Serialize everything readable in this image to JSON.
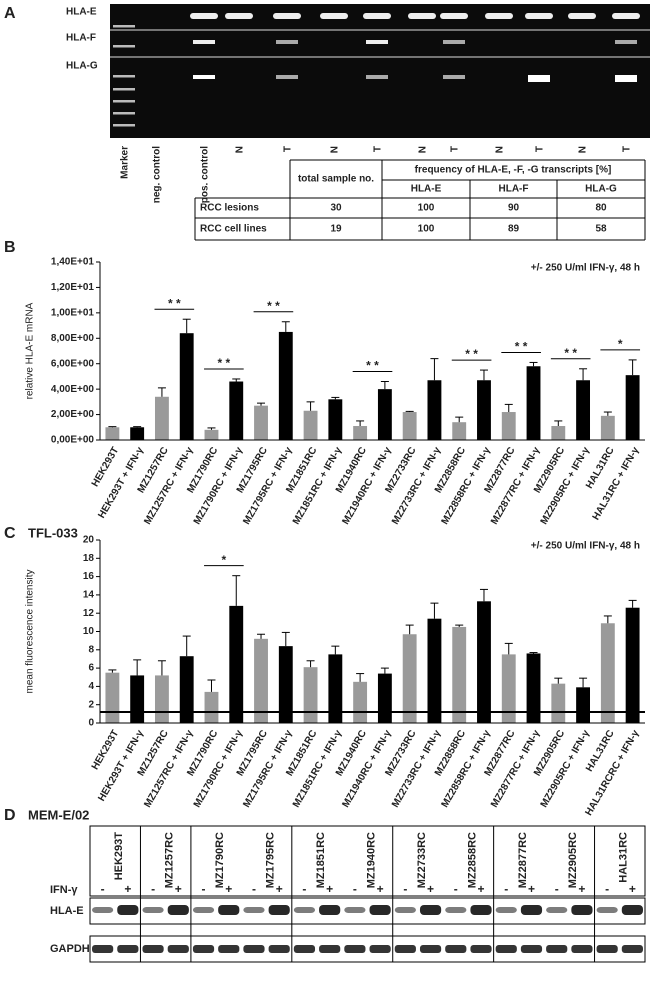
{
  "panel_a": {
    "label": "A",
    "gel_rows": [
      "HLA-E",
      "HLA-F",
      "HLA-G"
    ],
    "lanes": [
      "Marker",
      "neg. control",
      "pos. control",
      "N",
      "T",
      "N",
      "T",
      "N",
      "T",
      "N",
      "T",
      "N",
      "T"
    ],
    "table": {
      "header": [
        "total sample no.",
        "frequency of HLA-E, -F, -G transcripts [%]"
      ],
      "subheader": [
        "HLA-E",
        "HLA-F",
        "HLA-G"
      ],
      "rows": [
        [
          "RCC lesions",
          "30",
          "100",
          "90",
          "80"
        ],
        [
          "RCC cell lines",
          "19",
          "100",
          "89",
          "58"
        ]
      ]
    }
  },
  "chart_data": [
    {
      "type": "bar",
      "panel": "B",
      "annotation": "+/- 250 U/ml IFN-γ, 48 h",
      "y_label": "relative HLA-E mRNA",
      "categories": [
        "HEK293T",
        "HEK293T + IFN-γ",
        "MZ1257RC",
        "MZ1257RC + IFN-γ",
        "MZ1790RC",
        "MZ1790RC + IFN-γ",
        "MZ1795RC",
        "MZ1795RC + IFN-γ",
        "MZ1851RC",
        "MZ1851RC + IFN-γ",
        "MZ1940RC",
        "MZ1940RC + IFN-γ",
        "MZ2733RC",
        "MZ2733RC + IFN-γ",
        "MZ2858RC",
        "MZ2858RC + IFN-γ",
        "MZ2877RC",
        "MZ2877RC + IFN-γ",
        "MZ2905RC",
        "MZ2905RC + IFN-γ",
        "HAL31RC",
        "HAL31RC + IFN-γ"
      ],
      "values": [
        1.0,
        1.0,
        3.4,
        8.4,
        0.8,
        4.6,
        2.7,
        8.5,
        2.3,
        3.2,
        1.1,
        4.0,
        2.2,
        4.7,
        1.4,
        4.7,
        2.2,
        5.8,
        1.1,
        4.7,
        1.9,
        5.1
      ],
      "errors": [
        0.05,
        0.05,
        0.7,
        1.1,
        0.15,
        0.2,
        0.2,
        0.8,
        0.7,
        0.15,
        0.4,
        0.6,
        0.05,
        1.7,
        0.4,
        0.8,
        0.6,
        0.3,
        0.4,
        0.9,
        0.3,
        1.2
      ],
      "colors": [
        "#9a9a9a",
        "#000000"
      ],
      "significance": [
        null,
        "* *",
        "* *",
        "* *",
        null,
        "* *",
        null,
        "* *",
        "* *",
        "* *",
        "*"
      ],
      "ylim": [
        0,
        14
      ],
      "yticks": [
        {
          "value": 0,
          "label": "0,00E+00"
        },
        {
          "value": 2,
          "label": "2,00E+00"
        },
        {
          "value": 4,
          "label": "4,00E+00"
        },
        {
          "value": 6,
          "label": "6,00E+00"
        },
        {
          "value": 8,
          "label": "8,00E+00"
        },
        {
          "value": 10,
          "label": "1,00E+01"
        },
        {
          "value": 12,
          "label": "1,20E+01"
        },
        {
          "value": 14,
          "label": "1,40E+01"
        }
      ]
    },
    {
      "type": "bar",
      "panel": "C",
      "title": "TFL-033",
      "annotation": "+/- 250 U/ml IFN-γ, 48 h",
      "y_label": "mean fluorescence intensity",
      "categories": [
        "HEK293T",
        "HEK293T + IFN-γ",
        "MZ1257RC",
        "MZ1257RC + IFN-γ",
        "MZ1790RC",
        "MZ1790RC + IFN-γ",
        "MZ1795RC",
        "MZ1795RC + IFN-γ",
        "MZ1851RC",
        "MZ1851RC + IFN-γ",
        "MZ1940RC",
        "MZ1940RC + IFN-γ",
        "MZ2733RC",
        "MZ2733RC + IFN-γ",
        "MZ2858RC",
        "MZ2858RC + IFN-γ",
        "MZ2877RC",
        "MZ2877RC + IFN-γ",
        "MZ2905RC",
        "MZ2905RC + IFN-γ",
        "HAL31RC",
        "HAL31RCRC + IFN-γ"
      ],
      "values": [
        5.5,
        5.2,
        5.2,
        7.3,
        3.4,
        12.8,
        9.2,
        8.4,
        6.1,
        7.5,
        4.5,
        5.4,
        9.7,
        11.4,
        10.5,
        13.3,
        7.5,
        7.6,
        4.3,
        3.9,
        10.9,
        12.6
      ],
      "errors": [
        0.3,
        1.7,
        1.6,
        2.2,
        1.3,
        3.3,
        0.5,
        1.5,
        0.7,
        0.9,
        0.9,
        0.6,
        1.0,
        1.7,
        0.2,
        1.3,
        1.2,
        0.1,
        0.6,
        1.0,
        0.8,
        0.8
      ],
      "colors": [
        "#9a9a9a",
        "#000000"
      ],
      "significance": [
        null,
        null,
        "*",
        null,
        null,
        null,
        null,
        null,
        null,
        null,
        null
      ],
      "baseline": 1.2,
      "ylim": [
        0,
        20
      ],
      "yticks": [
        0,
        2,
        4,
        6,
        8,
        10,
        12,
        14,
        16,
        18,
        20
      ]
    }
  ],
  "panel_d": {
    "label": "D",
    "title": "MEM-E/02",
    "treatment": "IFN-γ",
    "signs": [
      "-",
      "+"
    ],
    "cell_lines": [
      "HEK293T",
      "MZ1257RC",
      "MZ1790RC",
      "MZ1795RC",
      "MZ1851RC",
      "MZ1940RC",
      "MZ2733RC",
      "MZ2858RC",
      "MZ2877RC",
      "MZ2905RC",
      "HAL31RC"
    ],
    "rows": [
      "HLA-E",
      "GAPDH"
    ]
  }
}
